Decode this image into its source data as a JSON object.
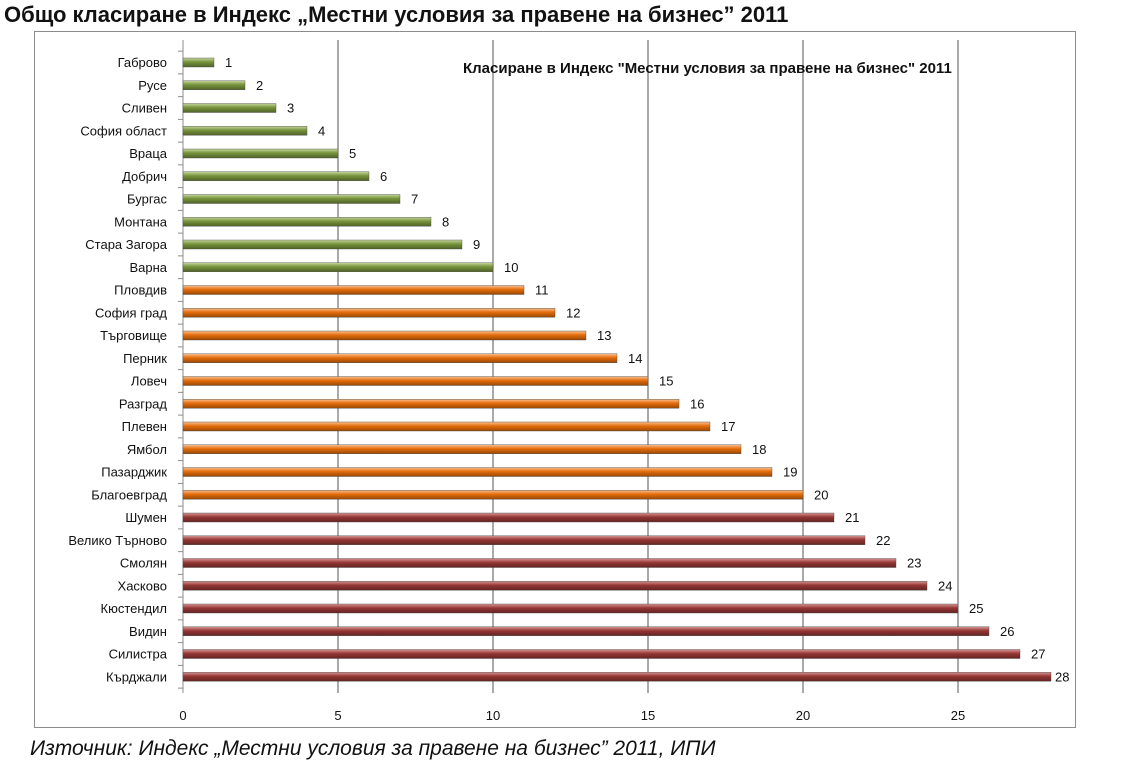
{
  "page": {
    "heading": "Общо класиране в Индекс „Местни условия за правене на бизнес” 2011",
    "source": "Източник: Индекс „Местни условия за правене на бизнес” 2011, ИПИ"
  },
  "colors": {
    "green": "#77933c",
    "orange": "#e46c0a",
    "maroon": "#943634",
    "grid": "#555555"
  },
  "chart_data": {
    "type": "bar",
    "orientation": "horizontal",
    "title": "Класиране в Индекс \"Местни условия за правене на бизнес\" 2011",
    "categories": [
      "Габрово",
      "Русе",
      "Сливен",
      "София област",
      "Враца",
      "Добрич",
      "Бургас",
      "Монтана",
      "Стара Загора",
      "Варна",
      "Пловдив",
      "София град",
      "Търговище",
      "Перник",
      "Ловеч",
      "Разград",
      "Плевен",
      "Ямбол",
      "Пазарджик",
      "Благоевград",
      "Шумен",
      "Велико Търново",
      "Смолян",
      "Хасково",
      "Кюстендил",
      "Видин",
      "Силистра",
      "Кърджали"
    ],
    "values": [
      1,
      2,
      3,
      4,
      5,
      6,
      7,
      8,
      9,
      10,
      11,
      12,
      13,
      14,
      15,
      16,
      17,
      18,
      19,
      20,
      21,
      22,
      23,
      24,
      25,
      26,
      27,
      28
    ],
    "color_groups": [
      "green",
      "green",
      "green",
      "green",
      "green",
      "green",
      "green",
      "green",
      "green",
      "green",
      "orange",
      "orange",
      "orange",
      "orange",
      "orange",
      "orange",
      "orange",
      "orange",
      "orange",
      "orange",
      "maroon",
      "maroon",
      "maroon",
      "maroon",
      "maroon",
      "maroon",
      "maroon",
      "maroon"
    ],
    "xlim": [
      0,
      28
    ],
    "xticks": [
      0,
      5,
      10,
      15,
      20,
      25
    ],
    "grid": true,
    "legend": "none"
  }
}
